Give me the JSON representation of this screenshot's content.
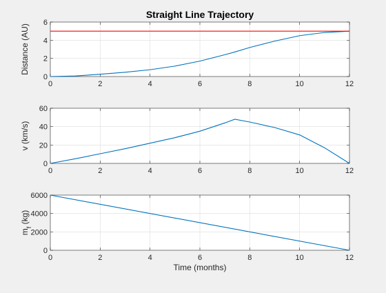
{
  "figure": {
    "title": "Straight Line Trajectory",
    "background": "#f0f0f0"
  },
  "chart_data": [
    {
      "type": "line",
      "title": "Straight Line Trajectory",
      "xlabel": "",
      "ylabel": "Distance (AU)",
      "xlim": [
        0,
        12
      ],
      "ylim": [
        0,
        6
      ],
      "xticks": [
        0,
        2,
        4,
        6,
        8,
        10,
        12
      ],
      "yticks": [
        0,
        2,
        4,
        6
      ],
      "grid": true,
      "series": [
        {
          "color": "#0072bd",
          "x": [
            0,
            1,
            2,
            3,
            4,
            5,
            6,
            7,
            7.4,
            8,
            9,
            10,
            11,
            12
          ],
          "y": [
            0,
            0.06,
            0.25,
            0.47,
            0.75,
            1.15,
            1.7,
            2.4,
            2.7,
            3.2,
            3.9,
            4.5,
            4.85,
            5.0
          ]
        },
        {
          "color": "#ff0000",
          "x": [
            0,
            12
          ],
          "y": [
            5,
            5
          ]
        }
      ]
    },
    {
      "type": "line",
      "xlabel": "",
      "ylabel": "v (km/s)",
      "xlim": [
        0,
        12
      ],
      "ylim": [
        0,
        60
      ],
      "xticks": [
        0,
        2,
        4,
        6,
        8,
        10,
        12
      ],
      "yticks": [
        0,
        20,
        40,
        60
      ],
      "grid": true,
      "series": [
        {
          "color": "#0072bd",
          "x": [
            0,
            1,
            2,
            3,
            4,
            5,
            6,
            7,
            7.4,
            8,
            9,
            10,
            11,
            12
          ],
          "y": [
            0,
            5,
            10.5,
            16,
            22,
            28,
            35,
            44,
            48,
            45,
            39,
            31,
            17,
            0
          ]
        }
      ]
    },
    {
      "type": "line",
      "xlabel": "Time (months)",
      "ylabel": "m",
      "ylabel_sub": "f",
      "ylabel_unit": " (kg)",
      "xlim": [
        0,
        12
      ],
      "ylim": [
        0,
        6000
      ],
      "xticks": [
        0,
        2,
        4,
        6,
        8,
        10,
        12
      ],
      "yticks": [
        0,
        2000,
        4000,
        6000
      ],
      "grid": true,
      "series": [
        {
          "color": "#0072bd",
          "x": [
            0,
            12
          ],
          "y": [
            6000,
            0
          ]
        }
      ]
    }
  ]
}
